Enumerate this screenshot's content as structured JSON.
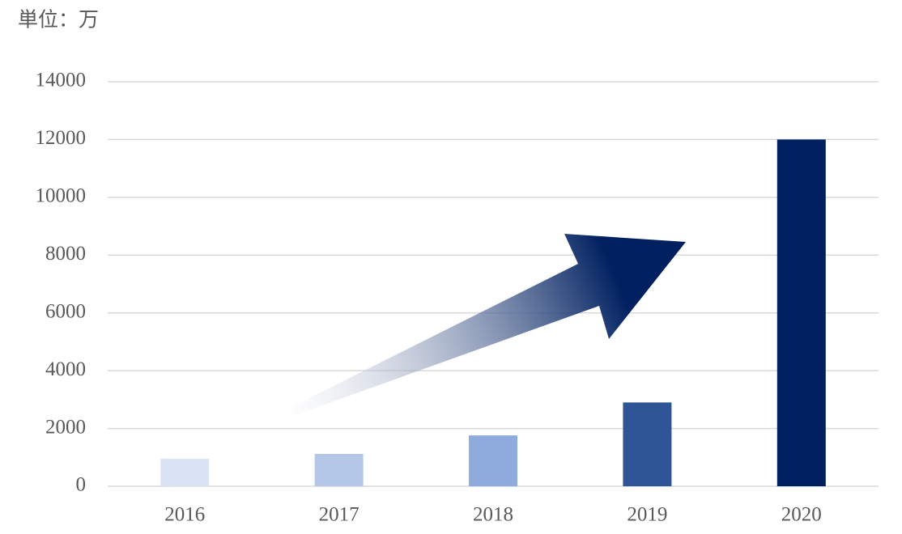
{
  "chart_data": {
    "type": "bar",
    "unit_label": "単位：万",
    "categories": [
      "2016",
      "2017",
      "2018",
      "2019",
      "2020"
    ],
    "values": [
      950,
      1120,
      1760,
      2900,
      12000
    ],
    "colors": [
      "#dae3f3",
      "#b4c7e7",
      "#8faadc",
      "#2f5597",
      "#002060"
    ],
    "ylim": [
      0,
      14000
    ],
    "yticks": [
      0,
      2000,
      4000,
      6000,
      8000,
      10000,
      12000,
      14000
    ],
    "grid": true
  }
}
